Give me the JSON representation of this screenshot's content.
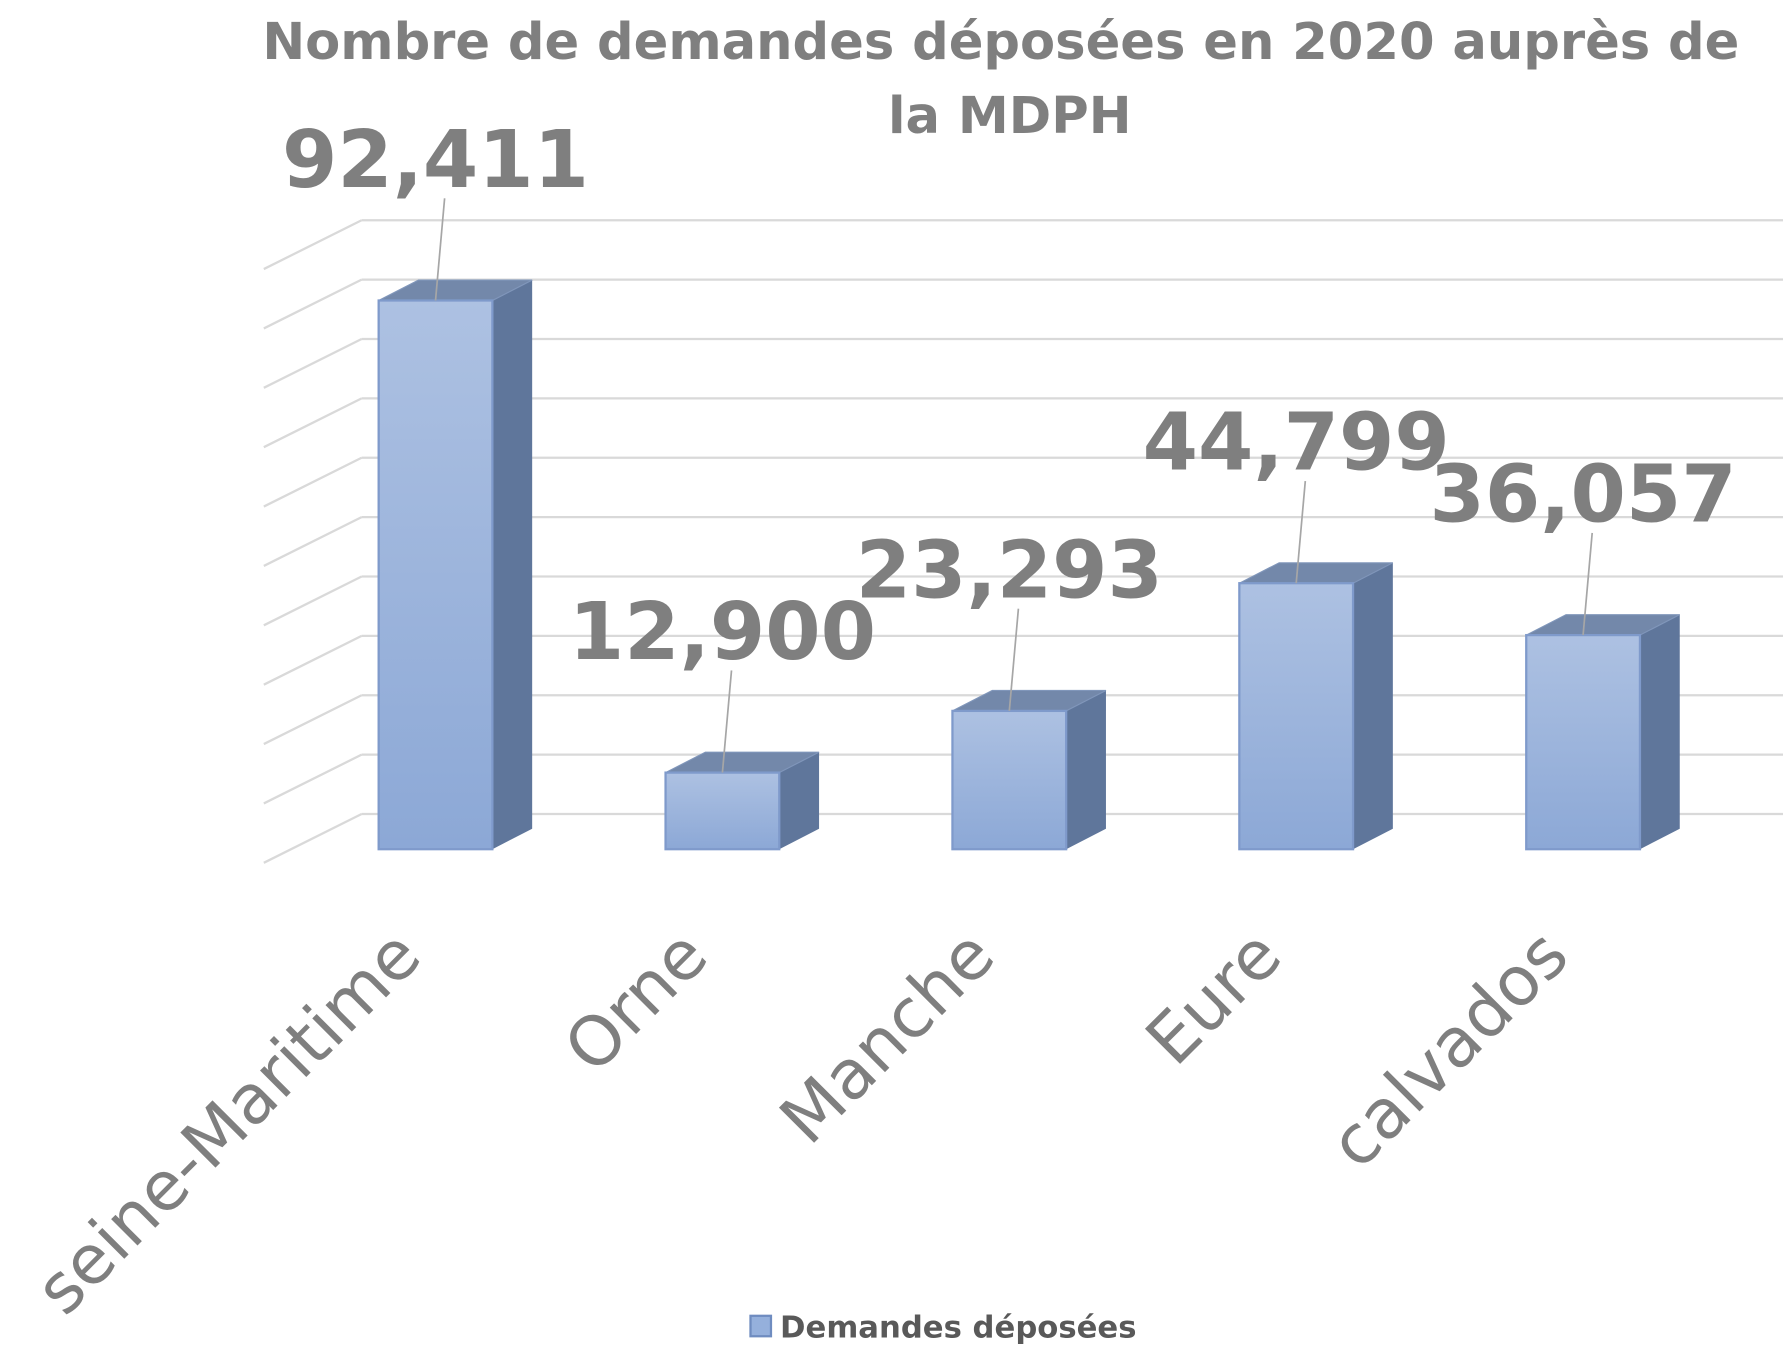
{
  "chart_data": {
    "type": "bar3d",
    "title": "Nombre de demandes déposées en 2020 auprès de la MDPH",
    "categories": [
      "seine-Maritime",
      "Orne",
      "Manche",
      "Eure",
      "calvados"
    ],
    "series": [
      {
        "name": "Demandes déposées",
        "color": "#95b0dc",
        "values": [
          92411,
          12900,
          23293,
          44799,
          36057
        ],
        "value_labels": [
          "92,411",
          "12,900",
          "23,293",
          "44,799",
          "36,057"
        ]
      }
    ],
    "ylim": [
      0,
      100000
    ],
    "yticks": [
      0,
      10000,
      20000,
      30000,
      40000,
      50000,
      60000,
      70000,
      80000,
      90000,
      100000
    ],
    "grid": true,
    "legend": "bottom"
  }
}
